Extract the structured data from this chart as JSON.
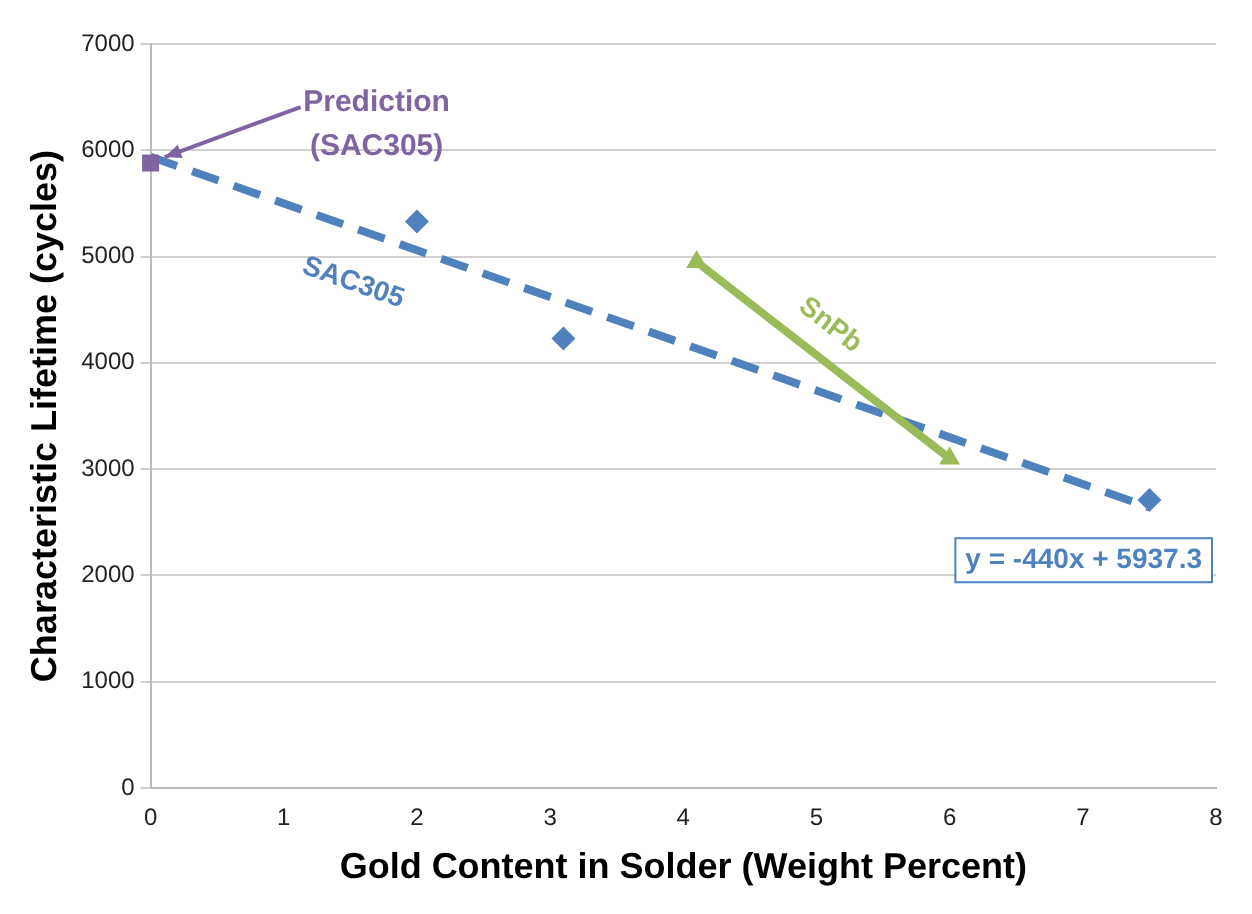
{
  "chart_data": {
    "type": "scatter",
    "xlabel": "Gold Content in Solder (Weight Percent)",
    "ylabel": "Characteristic Lifetime (cycles)",
    "xlim": [
      0,
      8
    ],
    "xticks": [
      0,
      1,
      2,
      3,
      4,
      5,
      6,
      7,
      8
    ],
    "ylim": [
      0,
      7000
    ],
    "yticks": [
      0,
      1000,
      2000,
      3000,
      4000,
      5000,
      6000,
      7000
    ],
    "grid": "y",
    "legend": false,
    "series": [
      {
        "type": "scatter",
        "color": "#4f81bd",
        "x": [
          2,
          3.1,
          7.5
        ],
        "values": [
          5330,
          4230,
          2710
        ],
        "marker": "diamond"
      },
      {
        "type": "scatter",
        "color": "#8064a2",
        "x": [
          0
        ],
        "values": [
          5880
        ],
        "marker": "square"
      },
      {
        "name": "SnPb",
        "type": "line",
        "color": "#9bbb59",
        "x": [
          4.1,
          6
        ],
        "values": [
          4950,
          3100
        ],
        "marker": "triangle",
        "line_style": "solid"
      },
      {
        "name": "SAC305",
        "type": "line",
        "color": "#4f81bd",
        "x": [
          0,
          7.5
        ],
        "values": [
          5940,
          2640
        ],
        "marker": "none",
        "line_style": "dashed"
      }
    ],
    "annotations": [
      {
        "text": "Prediction (SAC305)",
        "x": 0,
        "y": 5880
      },
      "y = -440x + 5937.3"
    ]
  }
}
